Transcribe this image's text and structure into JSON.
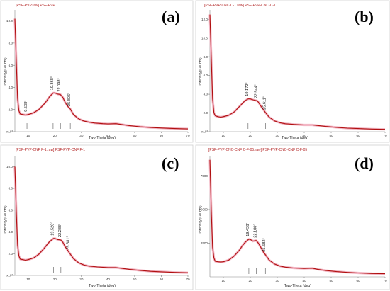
{
  "chart_data": [
    {
      "type": "line",
      "panel_label": "(a)",
      "title": "[PSF-PVP.raw] PSF-PVP",
      "xlabel": "Two-Theta (deg)",
      "ylabel": "Intensity(Counts)",
      "xlim": [
        5,
        70
      ],
      "ylim": [
        0,
        11
      ],
      "x_ticks": [
        10,
        20,
        30,
        40,
        50,
        60,
        70
      ],
      "y_ticks": [
        "x10³",
        "2.0",
        "4.0",
        "6.0",
        "8.0",
        "10.0"
      ],
      "y_tick_values": [
        0,
        2,
        4,
        6,
        8,
        10
      ],
      "color": "#b01010",
      "series": [
        {
          "x": [
            5,
            5.5,
            6,
            6.5,
            7,
            8,
            9,
            10,
            12,
            14,
            16,
            17,
            18,
            19,
            19.4,
            20,
            21,
            22.1,
            23,
            24,
            25,
            25.8,
            27,
            29,
            31,
            33,
            35,
            38,
            40,
            43,
            45,
            48,
            52,
            56,
            60,
            65,
            70
          ],
          "y": [
            10.2,
            6.5,
            3.0,
            1.9,
            1.6,
            1.55,
            1.5,
            1.55,
            1.7,
            2.0,
            2.5,
            2.8,
            3.15,
            3.4,
            3.5,
            3.5,
            3.4,
            3.35,
            3.1,
            2.6,
            2.25,
            2.05,
            1.55,
            1.15,
            0.95,
            0.85,
            0.78,
            0.72,
            0.7,
            0.72,
            0.65,
            0.55,
            0.45,
            0.38,
            0.33,
            0.28,
            0.25
          ]
        }
      ],
      "peaks": [
        {
          "x": 9.538,
          "y": 1.55,
          "label": "9.538°"
        },
        {
          "x": 19.368,
          "y": 3.5,
          "label": "19.368°"
        },
        {
          "x": 22.098,
          "y": 3.35,
          "label": "22.098°"
        },
        {
          "x": 25.806,
          "y": 2.05,
          "label": "25.806°"
        }
      ]
    },
    {
      "type": "line",
      "panel_label": "(b)",
      "title": "[PSF-PVP-CNC-C-1.raw] PSF-PVP-CNC-C-1",
      "xlabel": "Two-Theta (deg)",
      "ylabel": "Intensity(Counts)",
      "xlim": [
        5,
        70
      ],
      "ylim": [
        0,
        13
      ],
      "x_ticks": [
        10,
        20,
        30,
        40,
        50,
        60,
        70
      ],
      "y_ticks": [
        "x10³",
        "2.0",
        "4.0",
        "6.0",
        "8.0",
        "10.0",
        "12.0"
      ],
      "y_tick_values": [
        0,
        2,
        4,
        6,
        8,
        10,
        12
      ],
      "color": "#b01010",
      "series": [
        {
          "x": [
            5,
            5.5,
            6,
            6.5,
            7,
            8,
            9,
            10,
            12,
            14,
            16,
            17,
            18,
            19.2,
            20,
            21,
            22.5,
            23,
            24,
            25,
            25.6,
            27,
            29,
            31,
            33,
            36,
            40,
            43,
            45,
            48,
            52,
            56,
            60,
            65,
            70
          ],
          "y": [
            12.5,
            8.0,
            3.5,
            2.0,
            1.7,
            1.6,
            1.55,
            1.6,
            1.75,
            2.1,
            2.7,
            3.0,
            3.3,
            3.5,
            3.5,
            3.4,
            3.3,
            3.15,
            2.7,
            2.3,
            2.05,
            1.55,
            1.15,
            0.95,
            0.85,
            0.78,
            0.72,
            0.72,
            0.66,
            0.56,
            0.46,
            0.38,
            0.33,
            0.28,
            0.25
          ]
        }
      ],
      "peaks": [
        {
          "x": 19.172,
          "y": 3.5,
          "label": "19.172°"
        },
        {
          "x": 22.544,
          "y": 3.3,
          "label": "22.544°"
        },
        {
          "x": 25.611,
          "y": 2.05,
          "label": "25.611°"
        }
      ]
    },
    {
      "type": "line",
      "panel_label": "(c)",
      "title": "[PSF-PVP-CNF F-1.raw] PSF-PVP-CNF F-1",
      "xlabel": "Two-Theta (deg)",
      "ylabel": "Intensity(Counts)",
      "xlim": [
        5,
        70
      ],
      "ylim": [
        0,
        11
      ],
      "x_ticks": [
        10,
        20,
        30,
        40,
        50,
        60,
        70
      ],
      "y_ticks": [
        "x10³",
        "2.0",
        "4.0",
        "6.0",
        "8.0",
        "10.0"
      ],
      "y_tick_values": [
        0,
        2,
        4,
        6,
        8,
        10
      ],
      "color": "#b01010",
      "series": [
        {
          "x": [
            5,
            5.5,
            6,
            6.5,
            7,
            8,
            9,
            10,
            12,
            14,
            16,
            17,
            18,
            19.5,
            20,
            21,
            22.3,
            23,
            24,
            25,
            25.4,
            27,
            29,
            31,
            33,
            36,
            40,
            43,
            45,
            48,
            52,
            56,
            60,
            65,
            70
          ],
          "y": [
            10.0,
            6.0,
            2.8,
            1.8,
            1.5,
            1.45,
            1.4,
            1.45,
            1.6,
            1.95,
            2.5,
            2.8,
            3.1,
            3.4,
            3.4,
            3.3,
            3.25,
            3.05,
            2.6,
            2.25,
            2.1,
            1.55,
            1.15,
            0.95,
            0.85,
            0.78,
            0.72,
            0.72,
            0.66,
            0.56,
            0.46,
            0.38,
            0.33,
            0.28,
            0.25
          ]
        }
      ],
      "peaks": [
        {
          "x": 19.52,
          "y": 3.4,
          "label": "19.520°"
        },
        {
          "x": 22.283,
          "y": 3.25,
          "label": "22.283°"
        },
        {
          "x": 25.381,
          "y": 2.1,
          "label": "25.381°"
        }
      ]
    },
    {
      "type": "line",
      "panel_label": "(d)",
      "title": "[PSF-PVP-CNC-CNF C-F-05.raw] PSF-PVP-CNC-CNF C-F-05",
      "xlabel": "Two-Theta (deg)",
      "ylabel": "Intensity(Counts)",
      "xlim": [
        5,
        70
      ],
      "ylim": [
        0,
        9000
      ],
      "x_ticks": [
        10,
        20,
        30,
        40,
        50,
        60,
        70
      ],
      "y_ticks": [
        "2500",
        "5000",
        "7500"
      ],
      "y_tick_values": [
        2500,
        5000,
        7500
      ],
      "color": "#b01010",
      "series": [
        {
          "x": [
            5,
            5.5,
            6,
            6.5,
            7,
            8,
            9,
            10,
            12,
            14,
            16,
            17,
            18,
            19.46,
            20,
            21,
            22.18,
            23,
            24,
            25,
            25.58,
            27,
            29,
            31,
            33,
            36,
            40,
            43,
            45,
            48,
            52,
            56,
            60,
            65,
            70
          ],
          "y": [
            8700,
            5000,
            2200,
            1400,
            1150,
            1120,
            1100,
            1120,
            1250,
            1550,
            2000,
            2300,
            2550,
            2800,
            2780,
            2650,
            2700,
            2500,
            2150,
            1800,
            1650,
            1250,
            950,
            800,
            720,
            660,
            620,
            640,
            560,
            470,
            390,
            330,
            290,
            250,
            230
          ]
        }
      ],
      "peaks": [
        {
          "x": 19.458,
          "y": 2800,
          "label": "19.458°"
        },
        {
          "x": 22.18,
          "y": 2700,
          "label": "22.180°"
        },
        {
          "x": 25.582,
          "y": 1650,
          "label": "25.582°"
        }
      ]
    }
  ]
}
